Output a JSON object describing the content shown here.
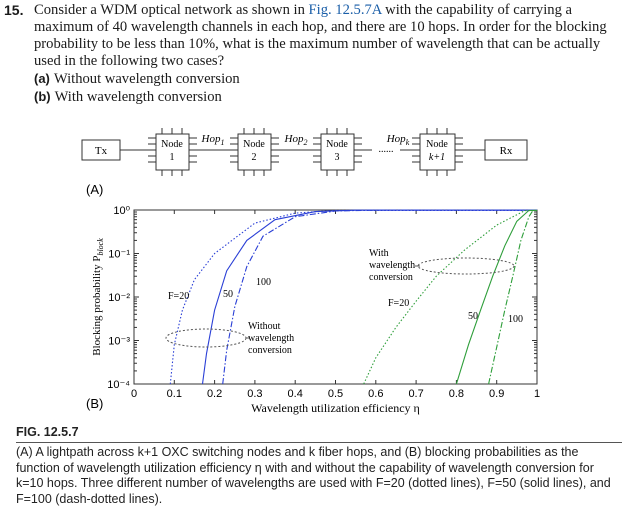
{
  "problem": {
    "number": "15.",
    "text_pre": "Consider a WDM optical network as shown in ",
    "fig_ref": "Fig. 12.5.7A",
    "text_post": " with the capability of carrying a maximum of 40 wavelength channels in each hop, and there are 10 hops. In order for the blocking probability to be less than 10%, what is the maximum number of wavelength that can be actually used in the following two cases?",
    "case_a_label": "(a)",
    "case_a_text": "Without wavelength conversion",
    "case_b_label": "(b)",
    "case_b_text": "With wavelength conversion"
  },
  "diagram": {
    "panel_label": "(A)",
    "tx": "Tx",
    "rx": "Rx",
    "node1": [
      "Node",
      "1"
    ],
    "node2": [
      "Node",
      "2"
    ],
    "node3": [
      "Node",
      "3"
    ],
    "node4": [
      "Node",
      "k+1"
    ],
    "hop1": "Hop",
    "hop1_sub": "1",
    "hop2": "Hop",
    "hop2_sub": "2",
    "hopk": "Hop",
    "hopk_sub": "k",
    "ellipsis": "......"
  },
  "chart_data": {
    "type": "line",
    "panel_label": "(B)",
    "xlabel": "Wavelength utilization efficiency η",
    "ylabel": "Blocking probability P",
    "ylabel_sub": "block",
    "xlim": [
      0,
      1
    ],
    "ylim": [
      0.0001,
      1
    ],
    "yscale": "log",
    "x_ticks": [
      "0",
      "0.1",
      "0.2",
      "0.3",
      "0.4",
      "0.5",
      "0.6",
      "0.7",
      "0.8",
      "0.9",
      "1"
    ],
    "y_ticks": [
      "10⁻⁴",
      "10⁻³",
      "10⁻²",
      "10⁻¹",
      "10⁰"
    ],
    "series": [
      {
        "group": "without",
        "style": "dotted",
        "color": "#2a3fd6",
        "x": [
          0.09,
          0.1,
          0.12,
          0.15,
          0.2,
          0.3,
          0.4,
          0.5
        ],
        "y": [
          0.0001,
          0.0008,
          0.005,
          0.025,
          0.1,
          0.5,
          0.85,
          0.98
        ]
      },
      {
        "group": "without",
        "style": "solid",
        "color": "#2a3fd6",
        "x": [
          0.17,
          0.18,
          0.2,
          0.23,
          0.28,
          0.35,
          0.45,
          0.55
        ],
        "y": [
          0.0001,
          0.0005,
          0.005,
          0.04,
          0.2,
          0.6,
          0.92,
          0.99
        ]
      },
      {
        "group": "without",
        "style": "dashdot",
        "color": "#2a3fd6",
        "x": [
          0.22,
          0.23,
          0.25,
          0.28,
          0.32,
          0.4,
          0.5,
          0.6
        ],
        "y": [
          0.0001,
          0.0006,
          0.006,
          0.05,
          0.25,
          0.7,
          0.95,
          0.995
        ]
      },
      {
        "group": "with",
        "style": "dotted",
        "color": "#2e9e3a",
        "x": [
          0.57,
          0.6,
          0.65,
          0.7,
          0.75,
          0.82,
          0.9,
          0.97
        ],
        "y": [
          0.0001,
          0.0004,
          0.002,
          0.008,
          0.03,
          0.12,
          0.45,
          0.97
        ]
      },
      {
        "group": "with",
        "style": "solid",
        "color": "#2e9e3a",
        "x": [
          0.8,
          0.83,
          0.86,
          0.89,
          0.92,
          0.95,
          0.98
        ],
        "y": [
          0.0001,
          0.0008,
          0.005,
          0.03,
          0.15,
          0.55,
          0.98
        ]
      },
      {
        "group": "with",
        "style": "dashdot",
        "color": "#2e9e3a",
        "x": [
          0.88,
          0.9,
          0.92,
          0.94,
          0.96,
          0.98,
          0.99
        ],
        "y": [
          0.0001,
          0.0007,
          0.005,
          0.03,
          0.2,
          0.7,
          0.98
        ]
      }
    ],
    "annotations": {
      "f20_without": "F=20",
      "f50_without": "50",
      "f100_without": "100",
      "without_label": [
        "Without",
        "wavelength",
        "conversion"
      ],
      "with_label": [
        "With",
        "wavelength",
        "conversion"
      ],
      "f20_with": "F=20",
      "f50_with": "50",
      "f100_with": "100"
    }
  },
  "figure": {
    "label": "FIG. 12.5.7",
    "caption": "(A) A lightpath across k+1 OXC switching nodes and k fiber hops, and (B) blocking probabilities as the function of wavelength utilization efficiency η with and without the capability of wavelength conversion for k=10 hops. Three different number of wavelengths are used with F=20 (dotted lines), F=50 (solid lines), and F=100 (dash-dotted lines)."
  }
}
